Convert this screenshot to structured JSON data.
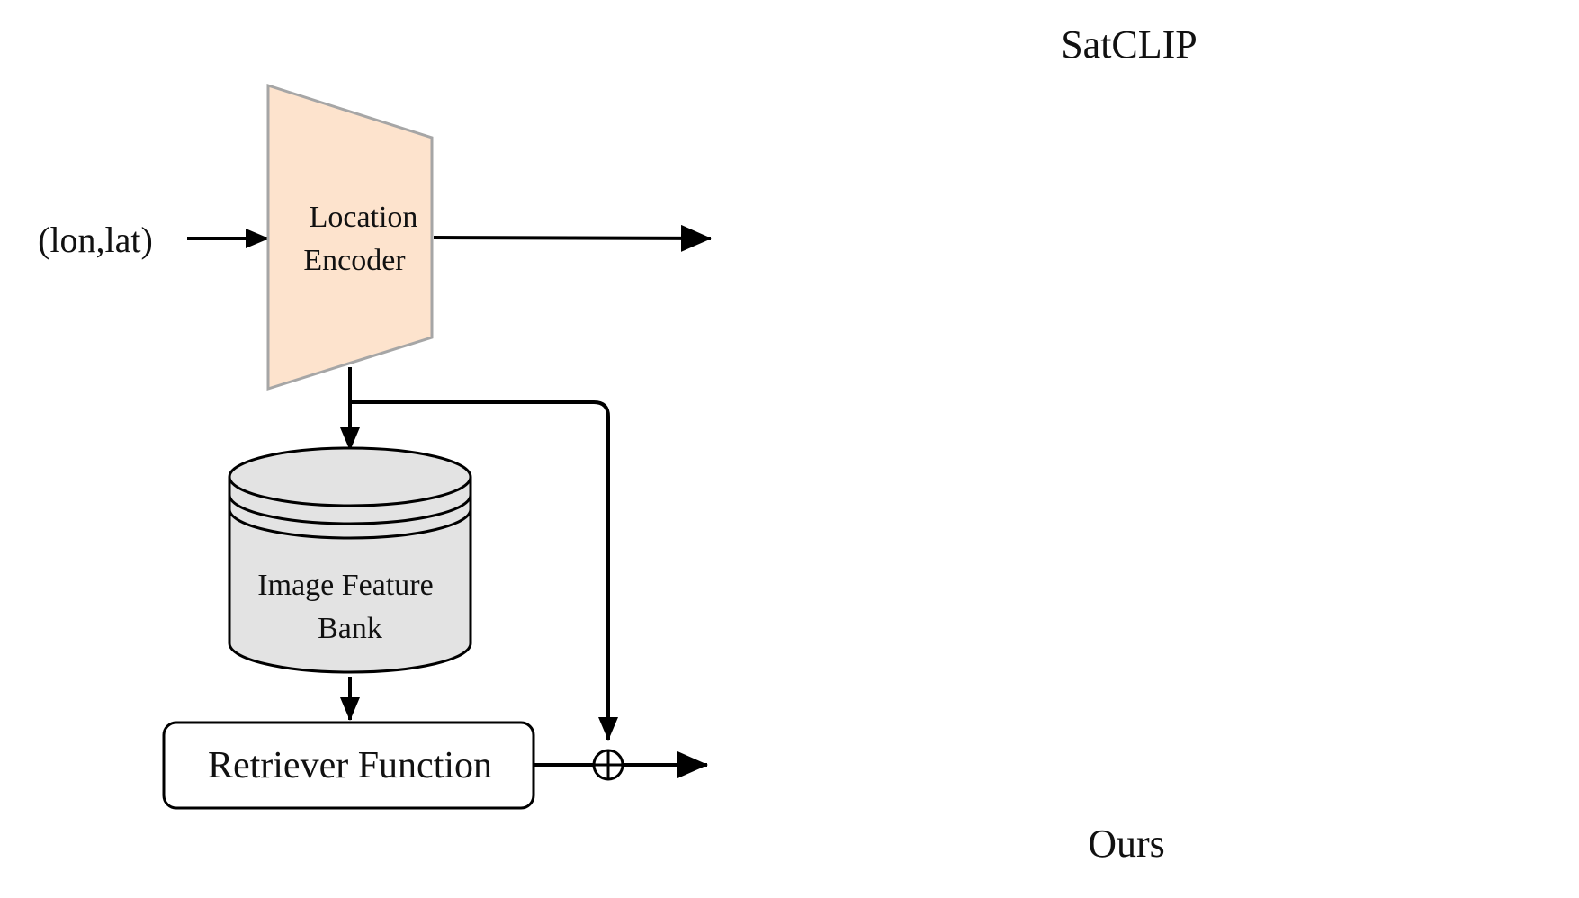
{
  "input": {
    "label": "(lon,lat)"
  },
  "encoder": {
    "line1": "Location",
    "line2": "Encoder"
  },
  "bank": {
    "line1": "Image Feature",
    "line2": "Bank"
  },
  "retriever": {
    "label": "Retriever Function"
  },
  "maps": {
    "top_title": "SatCLIP",
    "bottom_title": "Ours"
  },
  "colors": {
    "encoder_fill": "#fde3cd",
    "encoder_stroke": "#a6a6a6",
    "bank_fill": "#e3e3e3",
    "line": "#000000"
  }
}
